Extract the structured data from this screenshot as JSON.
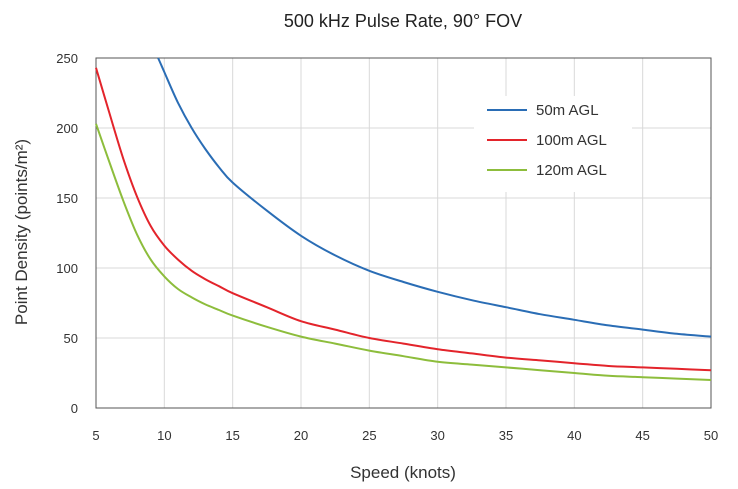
{
  "chart_data": {
    "type": "line",
    "title": "500 kHz Pulse Rate, 90° FOV",
    "xlabel": "Speed (knots)",
    "ylabel": "Point Density (points/m²)",
    "xlim": [
      5,
      50
    ],
    "ylim": [
      0,
      250
    ],
    "xticks": [
      "5",
      "10",
      "15",
      "20",
      "25",
      "30",
      "35",
      "40",
      "45",
      "50"
    ],
    "yticks": [
      "0",
      "50",
      "100",
      "150",
      "200",
      "250"
    ],
    "grid": true,
    "legend_position": "top-right",
    "x": [
      5,
      6,
      7,
      8,
      9,
      10,
      11,
      12,
      13,
      14,
      15,
      17.5,
      20,
      22.5,
      25,
      27.5,
      30,
      32.5,
      35,
      37.5,
      40,
      42.5,
      45,
      47.5,
      50
    ],
    "series": [
      {
        "name": "50m AGL",
        "color": "#2a6db5",
        "values": [
          null,
          null,
          null,
          null,
          null,
          240,
          218,
          200,
          185,
          172,
          161,
          141,
          123,
          109,
          98,
          90,
          83,
          77,
          72,
          67,
          63,
          59,
          56,
          53,
          51
        ]
      },
      {
        "name": "100m AGL",
        "color": "#e3242b",
        "values": [
          243,
          210,
          178,
          151,
          130,
          116,
          106,
          98,
          92,
          87,
          82,
          72,
          62,
          56,
          50,
          46,
          42,
          39,
          36,
          34,
          32,
          30,
          29,
          28,
          27
        ]
      },
      {
        "name": "120m AGL",
        "color": "#8dbd3c",
        "values": [
          203,
          175,
          148,
          124,
          106,
          94,
          85,
          79,
          74,
          70,
          66,
          58,
          51,
          46,
          41,
          37,
          33,
          31,
          29,
          27,
          25,
          23,
          22,
          21,
          20
        ]
      }
    ]
  }
}
